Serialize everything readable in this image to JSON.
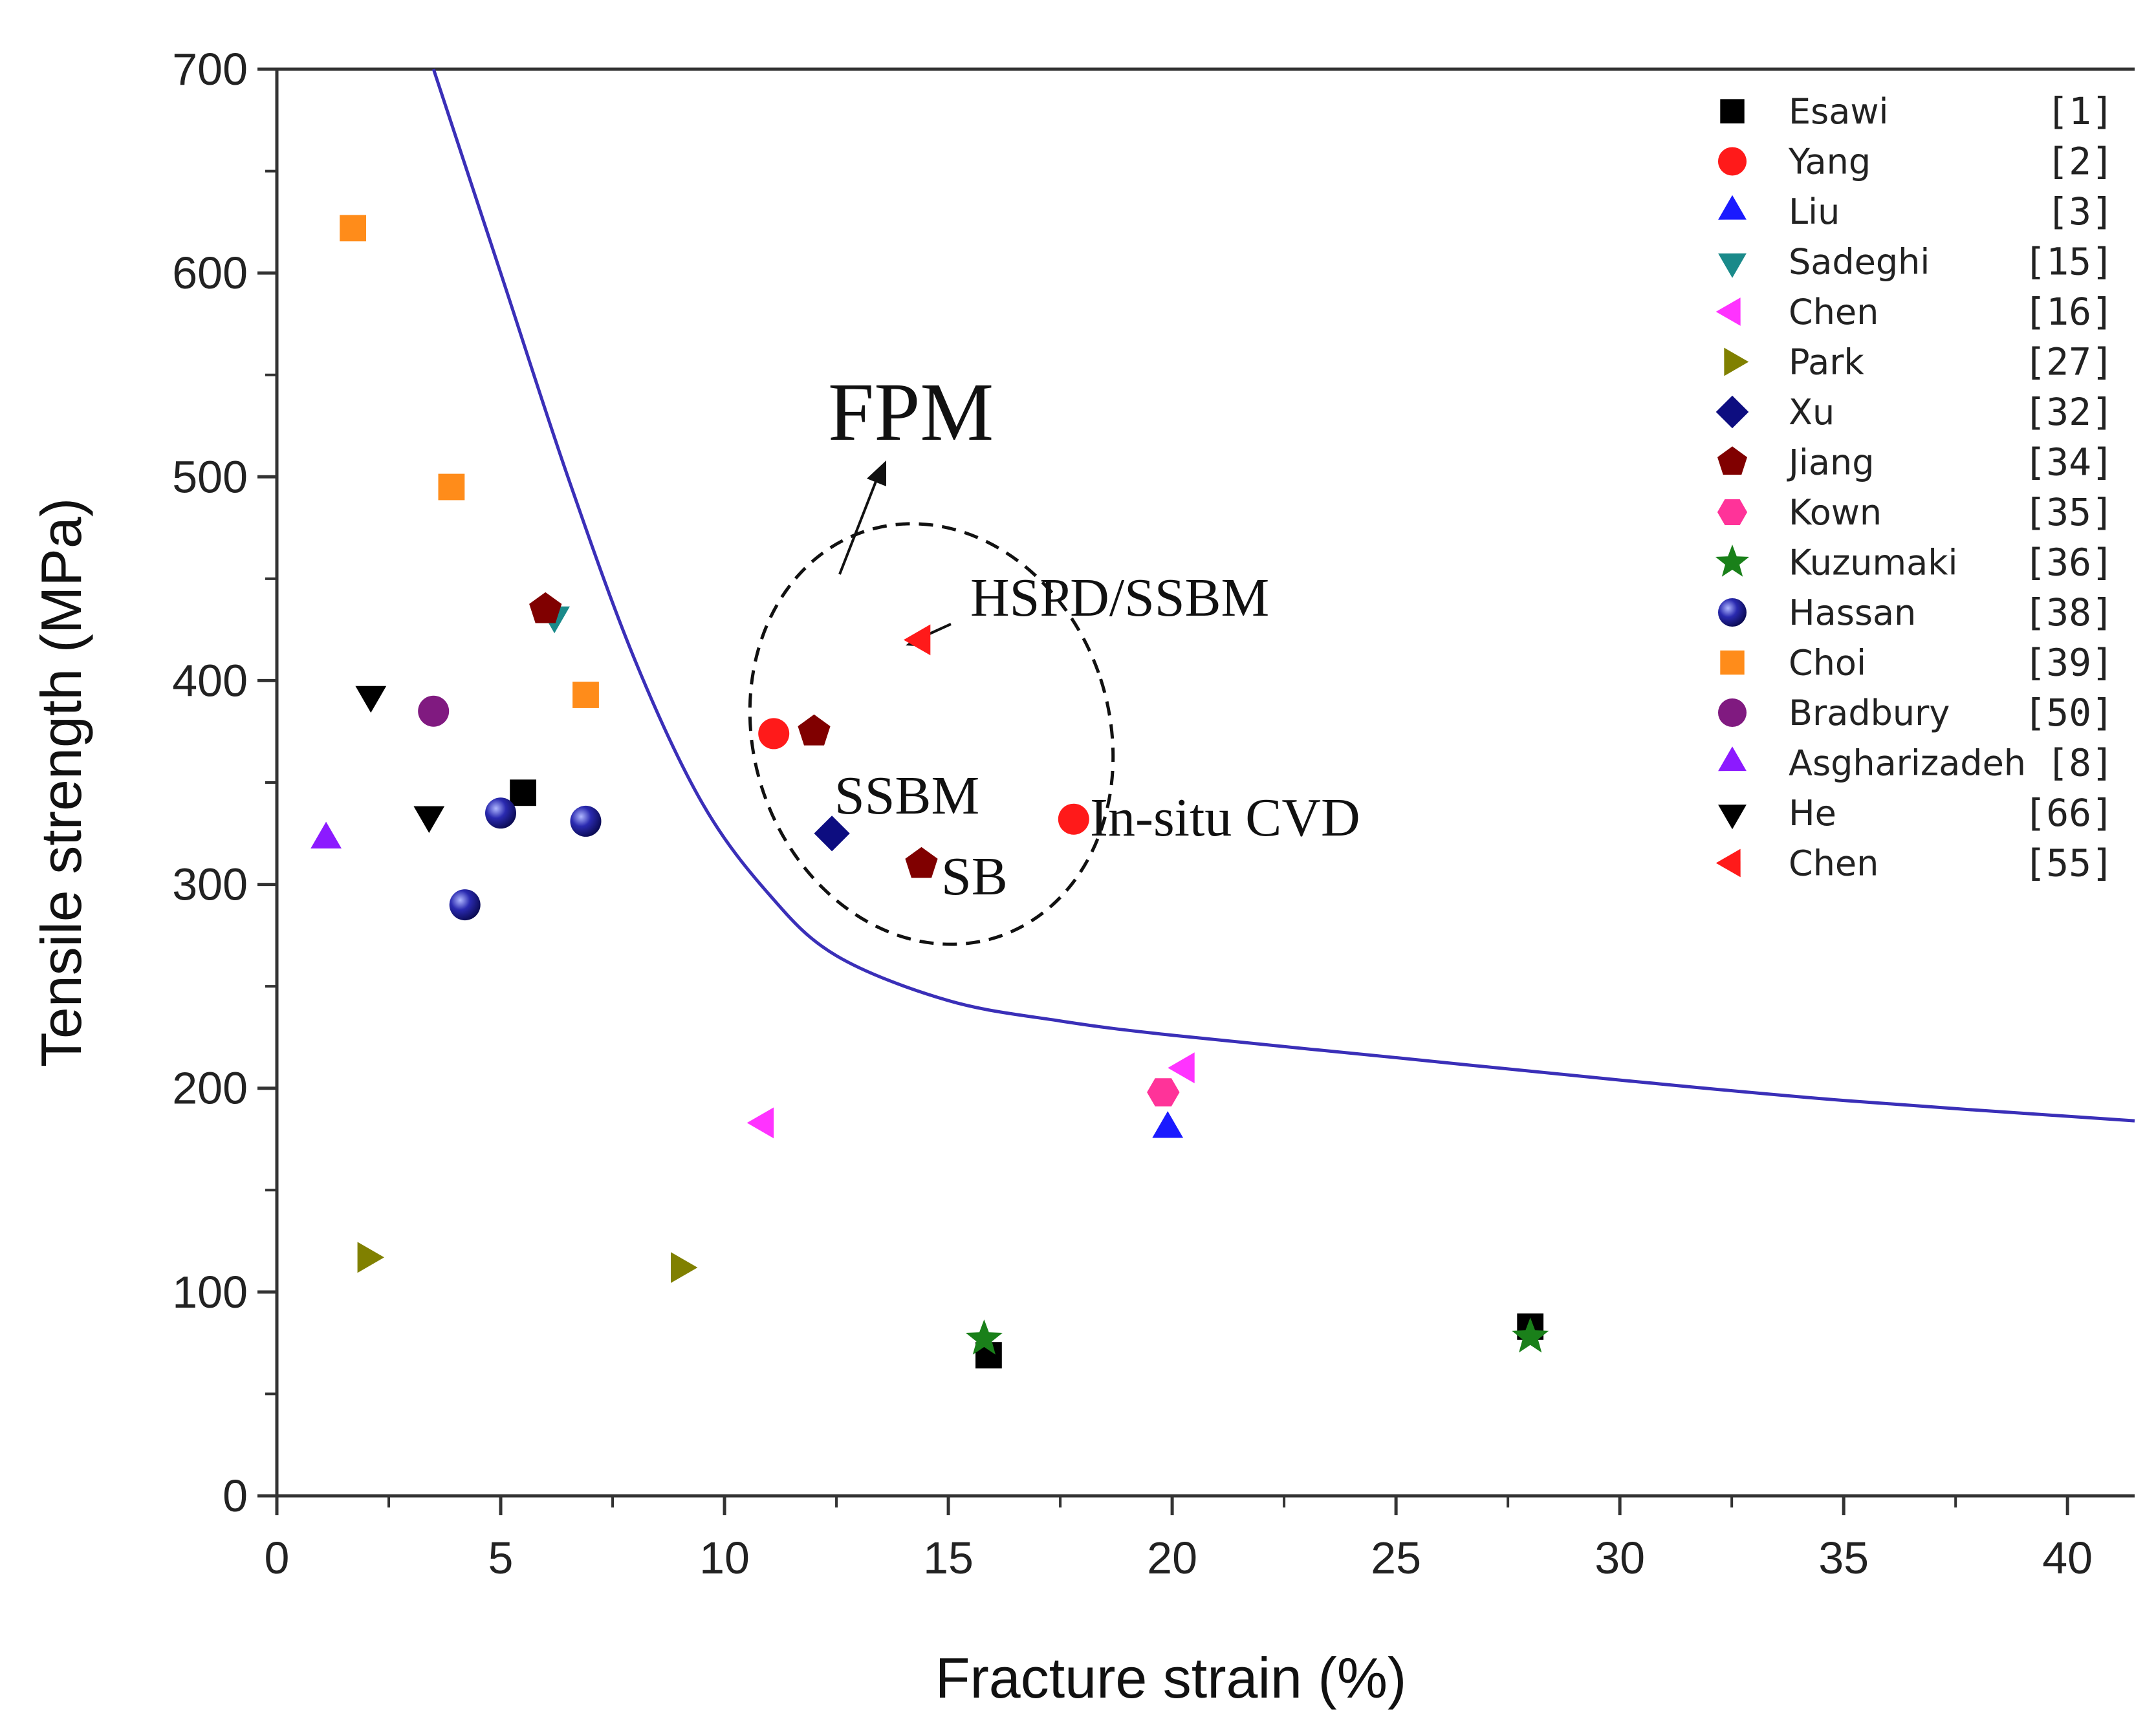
{
  "chart_data": {
    "type": "scatter",
    "xlabel": "Fracture strain (%)",
    "ylabel": "Tensile strength (MPa)",
    "xlim": [
      0,
      41.5
    ],
    "ylim": [
      0,
      700
    ],
    "xticks": [
      0,
      5,
      10,
      15,
      20,
      25,
      30,
      35,
      40
    ],
    "yticks": [
      0,
      100,
      200,
      300,
      400,
      500,
      600,
      700
    ],
    "grid": false,
    "legend_position": "top-right",
    "series": [
      {
        "name": "Esawi",
        "ref": "[1]",
        "marker": "square",
        "color": "#000000",
        "points": [
          [
            5.5,
            345
          ],
          [
            15.9,
            69
          ],
          [
            28.0,
            83
          ]
        ]
      },
      {
        "name": "Yang",
        "ref": "[2]",
        "marker": "circle",
        "color": "#ff1a1a",
        "points": [
          [
            11.1,
            374
          ],
          [
            17.8,
            332
          ]
        ]
      },
      {
        "name": "Liu",
        "ref": "[3]",
        "marker": "triangle-up",
        "color": "#1a1aff",
        "points": [
          [
            19.9,
            180
          ]
        ]
      },
      {
        "name": "Sadeghi",
        "ref": "[15]",
        "marker": "triangle-down",
        "color": "#1a8a8a",
        "points": [
          [
            6.2,
            432
          ]
        ]
      },
      {
        "name": "Chen",
        "ref": "[16]",
        "marker": "triangle-left",
        "color": "#ff33ff",
        "points": [
          [
            10.9,
            183
          ],
          [
            20.3,
            210
          ]
        ]
      },
      {
        "name": "Park",
        "ref": "[27]",
        "marker": "triangle-right",
        "color": "#808000",
        "points": [
          [
            2.0,
            117
          ],
          [
            9.0,
            112
          ]
        ]
      },
      {
        "name": "Xu",
        "ref": "[32]",
        "marker": "diamond",
        "color": "#0d0d80",
        "points": [
          [
            12.4,
            325
          ]
        ]
      },
      {
        "name": "Jiang",
        "ref": "[34]",
        "marker": "pentagon",
        "color": "#800000",
        "points": [
          [
            6.0,
            435
          ],
          [
            12.0,
            375
          ],
          [
            14.4,
            310
          ]
        ]
      },
      {
        "name": "Kown",
        "ref": "[35]",
        "marker": "hexagon",
        "color": "#ff3399",
        "points": [
          [
            19.8,
            198
          ]
        ]
      },
      {
        "name": "Kuzumaki",
        "ref": "[36]",
        "marker": "star",
        "color": "#1a801a",
        "points": [
          [
            15.8,
            77
          ],
          [
            28.0,
            78
          ]
        ]
      },
      {
        "name": "Hassan",
        "ref": "[38]",
        "marker": "sphere",
        "color": "#1a1a8c",
        "points": [
          [
            5.0,
            335
          ],
          [
            6.9,
            331
          ],
          [
            4.2,
            290
          ]
        ]
      },
      {
        "name": "Choi",
        "ref": "[39]",
        "marker": "square",
        "color": "#ff8c1a",
        "points": [
          [
            1.7,
            622
          ],
          [
            3.9,
            495
          ],
          [
            6.9,
            393
          ]
        ]
      },
      {
        "name": "Bradbury",
        "ref": "[50]",
        "marker": "circle",
        "color": "#801a80",
        "points": [
          [
            3.5,
            385
          ]
        ]
      },
      {
        "name": "Asgharizadeh",
        "ref": "[8]",
        "marker": "triangle-up",
        "color": "#8c1aff",
        "points": [
          [
            1.1,
            322
          ]
        ]
      },
      {
        "name": "He",
        "ref": "[66]",
        "marker": "triangle-down",
        "color": "#000000",
        "points": [
          [
            2.1,
            393
          ],
          [
            3.4,
            334
          ]
        ]
      },
      {
        "name": "Chen",
        "ref": "[55]",
        "marker": "triangle-left",
        "color": "#ff1a1a",
        "points": [
          [
            14.4,
            420
          ]
        ]
      }
    ],
    "curve": {
      "color": "#3a2fb8",
      "points": [
        [
          3.5,
          700
        ],
        [
          5.0,
          600
        ],
        [
          6.5,
          500
        ],
        [
          8.0,
          410
        ],
        [
          9.5,
          340
        ],
        [
          11.0,
          295
        ],
        [
          12.5,
          265
        ],
        [
          15.0,
          243
        ],
        [
          17.5,
          233
        ],
        [
          20.0,
          226
        ],
        [
          25.0,
          215
        ],
        [
          30.0,
          204
        ],
        [
          35.0,
          194
        ],
        [
          41.5,
          184
        ]
      ]
    },
    "annotations": {
      "fpm": "FPM",
      "hspd_ssbm": "HSPD/SSBM",
      "ssbm": "SSBM",
      "sb": "SB",
      "insitu_cvd": "In-situ CVD"
    }
  }
}
